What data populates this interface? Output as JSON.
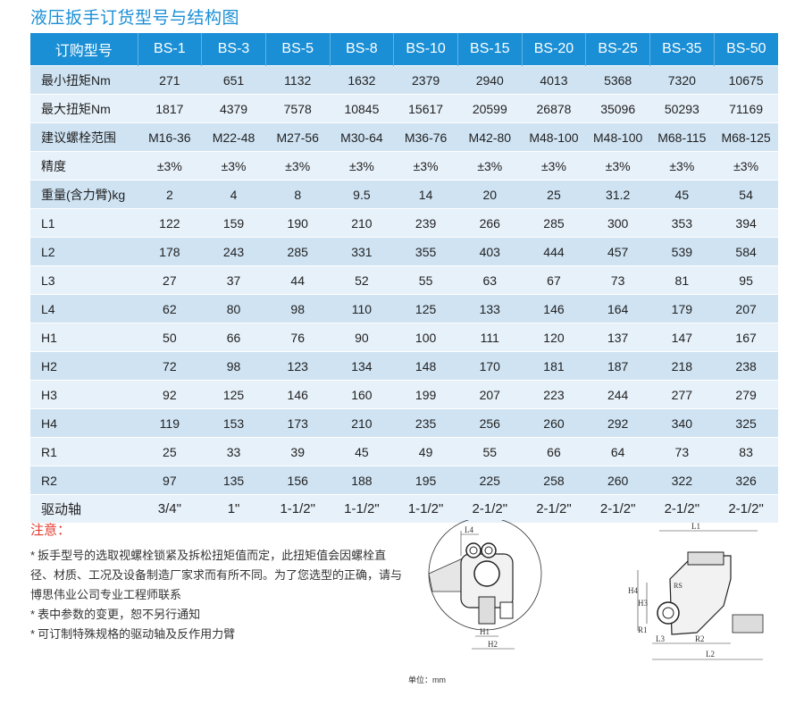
{
  "title": "液压扳手订货型号与结构图",
  "table": {
    "header_label": "订购型号",
    "models": [
      "BS-1",
      "BS-3",
      "BS-5",
      "BS-8",
      "BS-10",
      "BS-15",
      "BS-20",
      "BS-25",
      "BS-35",
      "BS-50"
    ],
    "rows": [
      {
        "label": "最小扭矩Nm",
        "values": [
          "271",
          "651",
          "1132",
          "1632",
          "2379",
          "2940",
          "4013",
          "5368",
          "7320",
          "10675"
        ]
      },
      {
        "label": "最大扭矩Nm",
        "values": [
          "1817",
          "4379",
          "7578",
          "10845",
          "15617",
          "20599",
          "26878",
          "35096",
          "50293",
          "71169"
        ]
      },
      {
        "label": "建议螺栓范围",
        "values": [
          "M16-36",
          "M22-48",
          "M27-56",
          "M30-64",
          "M36-76",
          "M42-80",
          "M48-100",
          "M48-100",
          "M68-115",
          "M68-125"
        ]
      },
      {
        "label": "精度",
        "values": [
          "±3%",
          "±3%",
          "±3%",
          "±3%",
          "±3%",
          "±3%",
          "±3%",
          "±3%",
          "±3%",
          "±3%"
        ]
      },
      {
        "label": "重量(含力臂)kg",
        "values": [
          "2",
          "4",
          "8",
          "9.5",
          "14",
          "20",
          "25",
          "31.2",
          "45",
          "54"
        ]
      },
      {
        "label": "L1",
        "values": [
          "122",
          "159",
          "190",
          "210",
          "239",
          "266",
          "285",
          "300",
          "353",
          "394"
        ]
      },
      {
        "label": "L2",
        "values": [
          "178",
          "243",
          "285",
          "331",
          "355",
          "403",
          "444",
          "457",
          "539",
          "584"
        ]
      },
      {
        "label": "L3",
        "values": [
          "27",
          "37",
          "44",
          "52",
          "55",
          "63",
          "67",
          "73",
          "81",
          "95"
        ]
      },
      {
        "label": "L4",
        "values": [
          "62",
          "80",
          "98",
          "110",
          "125",
          "133",
          "146",
          "164",
          "179",
          "207"
        ]
      },
      {
        "label": "H1",
        "values": [
          "50",
          "66",
          "76",
          "90",
          "100",
          "111",
          "120",
          "137",
          "147",
          "167"
        ]
      },
      {
        "label": "H2",
        "values": [
          "72",
          "98",
          "123",
          "134",
          "148",
          "170",
          "181",
          "187",
          "218",
          "238"
        ]
      },
      {
        "label": "H3",
        "values": [
          "92",
          "125",
          "146",
          "160",
          "199",
          "207",
          "223",
          "244",
          "277",
          "279"
        ]
      },
      {
        "label": "H4",
        "values": [
          "119",
          "153",
          "173",
          "210",
          "235",
          "256",
          "260",
          "292",
          "340",
          "325"
        ]
      },
      {
        "label": "R1",
        "values": [
          "25",
          "33",
          "39",
          "45",
          "49",
          "55",
          "66",
          "64",
          "73",
          "83"
        ]
      },
      {
        "label": "R2",
        "values": [
          "97",
          "135",
          "156",
          "188",
          "195",
          "225",
          "258",
          "260",
          "322",
          "326"
        ]
      },
      {
        "label": "驱动轴",
        "values": [
          "3/4\"",
          "1\"",
          "1-1/2\"",
          "1-1/2\"",
          "1-1/2\"",
          "2-1/2\"",
          "2-1/2\"",
          "2-1/2\"",
          "2-1/2\"",
          "2-1/2\""
        ]
      }
    ]
  },
  "notes": {
    "title": "注意：",
    "bullet": "*",
    "items": [
      "扳手型号的选取视螺栓锁紧及拆松扭矩值而定，此扭矩值会因螺栓直径、材质、工况及设备制造厂家求而有所不同。为了您选型的正确，请与博思伟业公司专业工程师联系",
      "表中参数的变更，恕不另行通知",
      "可订制特殊规格的驱动轴及反作用力臂"
    ]
  },
  "diagram": {
    "front_labels": {
      "l4": "L4",
      "h1": "H1",
      "h2": "H2"
    },
    "side_labels": {
      "l1": "L1",
      "l2": "L2",
      "l3": "L3",
      "h3": "H3",
      "h4": "H4",
      "r1": "R1",
      "r2": "R2",
      "rs": "RS"
    },
    "unit": "单位：mm"
  },
  "colors": {
    "accent": "#1a8fd6",
    "row_dark": "#cfe3f3",
    "row_light": "#e7f1fa",
    "note_red": "#e23a2f"
  }
}
